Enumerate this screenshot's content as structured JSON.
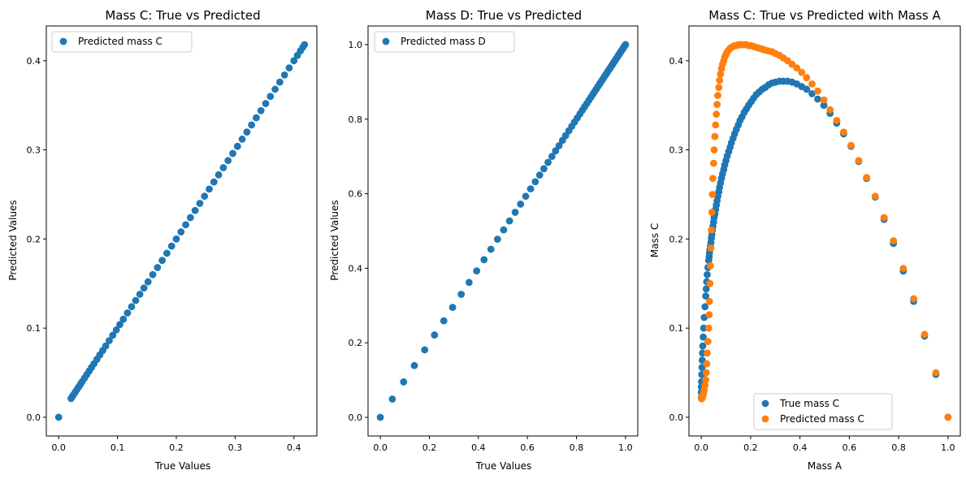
{
  "colors": {
    "blue": "#1f77b4",
    "orange": "#ff7f0e"
  },
  "chart_data": [
    {
      "type": "scatter",
      "title": "Mass C: True vs Predicted",
      "xlabel": "True Values",
      "ylabel": "Predicted Values",
      "xlim": [
        -0.021,
        0.439
      ],
      "ylim": [
        -0.021,
        0.439
      ],
      "xticks": [
        0.0,
        0.1,
        0.2,
        0.3,
        0.4
      ],
      "xtick_labels": [
        "0.0",
        "0.1",
        "0.2",
        "0.3",
        "0.4"
      ],
      "yticks": [
        0.0,
        0.1,
        0.2,
        0.3,
        0.4
      ],
      "yticks_labels": [
        "0.0",
        "0.1",
        "0.2",
        "0.3",
        "0.4"
      ],
      "legend": {
        "placement": "upper-left",
        "entries": [
          "Predicted mass C"
        ]
      },
      "grid": false,
      "series": [
        {
          "name": "Predicted mass C",
          "color": "#1f77b4",
          "x": [
            0.0,
            0.021,
            0.023,
            0.025,
            0.028,
            0.031,
            0.034,
            0.037,
            0.04,
            0.044,
            0.048,
            0.052,
            0.056,
            0.06,
            0.065,
            0.07,
            0.075,
            0.08,
            0.086,
            0.092,
            0.098,
            0.104,
            0.11,
            0.117,
            0.124,
            0.131,
            0.138,
            0.145,
            0.152,
            0.16,
            0.168,
            0.176,
            0.184,
            0.192,
            0.2,
            0.208,
            0.216,
            0.224,
            0.232,
            0.24,
            0.248,
            0.256,
            0.264,
            0.272,
            0.28,
            0.288,
            0.296,
            0.304,
            0.312,
            0.32,
            0.328,
            0.336,
            0.344,
            0.352,
            0.36,
            0.368,
            0.376,
            0.384,
            0.392,
            0.4,
            0.406,
            0.411,
            0.415,
            0.418
          ],
          "y": [
            0.0,
            0.021,
            0.023,
            0.025,
            0.028,
            0.031,
            0.034,
            0.037,
            0.04,
            0.044,
            0.048,
            0.052,
            0.056,
            0.06,
            0.065,
            0.07,
            0.075,
            0.08,
            0.086,
            0.092,
            0.098,
            0.104,
            0.11,
            0.117,
            0.124,
            0.131,
            0.138,
            0.145,
            0.152,
            0.16,
            0.168,
            0.176,
            0.184,
            0.192,
            0.2,
            0.208,
            0.216,
            0.224,
            0.232,
            0.24,
            0.248,
            0.256,
            0.264,
            0.272,
            0.28,
            0.288,
            0.296,
            0.304,
            0.312,
            0.32,
            0.328,
            0.336,
            0.344,
            0.352,
            0.36,
            0.368,
            0.376,
            0.384,
            0.392,
            0.4,
            0.406,
            0.411,
            0.415,
            0.418
          ]
        }
      ]
    },
    {
      "type": "scatter",
      "title": "Mass D: True vs Predicted",
      "xlabel": "True Values",
      "ylabel": "Predicted Values",
      "xlim": [
        -0.05,
        1.05
      ],
      "ylim": [
        -0.05,
        1.05
      ],
      "xticks": [
        0.0,
        0.2,
        0.4,
        0.6,
        0.8,
        1.0
      ],
      "xtick_labels": [
        "0.0",
        "0.2",
        "0.4",
        "0.6",
        "0.8",
        "1.0"
      ],
      "yticks": [
        0.0,
        0.2,
        0.4,
        0.6,
        0.8,
        1.0
      ],
      "yticks_labels": [
        "0.0",
        "0.2",
        "0.4",
        "0.6",
        "0.8",
        "1.0"
      ],
      "legend": {
        "placement": "upper-left",
        "entries": [
          "Predicted mass D"
        ]
      },
      "grid": false,
      "series": [
        {
          "name": "Predicted mass D",
          "color": "#1f77b4",
          "x": [
            0.0,
            0.049,
            0.095,
            0.139,
            0.181,
            0.221,
            0.259,
            0.295,
            0.33,
            0.362,
            0.393,
            0.423,
            0.451,
            0.478,
            0.503,
            0.527,
            0.55,
            0.572,
            0.593,
            0.613,
            0.632,
            0.65,
            0.667,
            0.684,
            0.7,
            0.715,
            0.729,
            0.743,
            0.756,
            0.769,
            0.781,
            0.792,
            0.803,
            0.814,
            0.824,
            0.833,
            0.842,
            0.851,
            0.859,
            0.867,
            0.874,
            0.881,
            0.888,
            0.895,
            0.901,
            0.907,
            0.913,
            0.918,
            0.923,
            0.928,
            0.933,
            0.938,
            0.942,
            0.946,
            0.95,
            0.954,
            0.958,
            0.961,
            0.965,
            0.968,
            0.971,
            0.974,
            0.977,
            0.98,
            0.983,
            0.986,
            0.989,
            0.992,
            0.995,
            0.998,
            1.0
          ],
          "y": [
            0.0,
            0.049,
            0.095,
            0.139,
            0.181,
            0.221,
            0.259,
            0.295,
            0.33,
            0.362,
            0.393,
            0.423,
            0.451,
            0.478,
            0.503,
            0.527,
            0.55,
            0.572,
            0.593,
            0.613,
            0.632,
            0.65,
            0.667,
            0.684,
            0.7,
            0.715,
            0.729,
            0.743,
            0.756,
            0.769,
            0.781,
            0.792,
            0.803,
            0.814,
            0.824,
            0.833,
            0.842,
            0.851,
            0.859,
            0.867,
            0.874,
            0.881,
            0.888,
            0.895,
            0.901,
            0.907,
            0.913,
            0.918,
            0.923,
            0.928,
            0.933,
            0.938,
            0.942,
            0.946,
            0.95,
            0.954,
            0.958,
            0.961,
            0.965,
            0.968,
            0.971,
            0.974,
            0.977,
            0.98,
            0.983,
            0.986,
            0.989,
            0.992,
            0.995,
            0.998,
            1.0
          ]
        }
      ]
    },
    {
      "type": "scatter",
      "title": "Mass C: True vs Predicted with Mass A",
      "xlabel": "Mass A",
      "ylabel": "Mass C",
      "xlim": [
        -0.05,
        1.05
      ],
      "ylim": [
        -0.021,
        0.439
      ],
      "xticks": [
        0.0,
        0.2,
        0.4,
        0.6,
        0.8,
        1.0
      ],
      "xtick_labels": [
        "0.0",
        "0.2",
        "0.4",
        "0.6",
        "0.8",
        "1.0"
      ],
      "yticks": [
        0.0,
        0.1,
        0.2,
        0.3,
        0.4
      ],
      "yticks_labels": [
        "0.0",
        "0.1",
        "0.2",
        "0.3",
        "0.4"
      ],
      "legend": {
        "placement": "lower-center",
        "entries": [
          "True mass C",
          "Predicted mass C"
        ]
      },
      "grid": false,
      "series": [
        {
          "name": "True mass C",
          "color": "#1f77b4",
          "x": [
            1.0,
            0.951,
            0.905,
            0.861,
            0.819,
            0.779,
            0.741,
            0.705,
            0.67,
            0.638,
            0.607,
            0.577,
            0.549,
            0.522,
            0.497,
            0.472,
            0.449,
            0.427,
            0.407,
            0.387,
            0.368,
            0.35,
            0.333,
            0.317,
            0.301,
            0.287,
            0.273,
            0.259,
            0.247,
            0.235,
            0.223,
            0.212,
            0.202,
            0.192,
            0.183,
            0.174,
            0.165,
            0.157,
            0.15,
            0.142,
            0.135,
            0.129,
            0.122,
            0.117,
            0.111,
            0.105,
            0.1,
            0.095,
            0.091,
            0.086,
            0.082,
            0.078,
            0.074,
            0.071,
            0.067,
            0.064,
            0.061,
            0.058,
            0.055,
            0.052,
            0.05,
            0.047,
            0.045,
            0.043,
            0.041,
            0.039,
            0.037,
            0.035,
            0.033,
            0.032,
            0.03,
            0.027,
            0.024,
            0.022,
            0.02,
            0.018,
            0.015,
            0.012,
            0.01,
            0.008,
            0.006,
            0.005,
            0.004,
            0.003,
            0.002,
            0.001,
            0.0005,
            0.0002,
            0.0001
          ],
          "y": [
            0.0,
            0.048,
            0.091,
            0.13,
            0.164,
            0.195,
            0.222,
            0.247,
            0.268,
            0.287,
            0.304,
            0.318,
            0.33,
            0.341,
            0.35,
            0.357,
            0.363,
            0.368,
            0.371,
            0.374,
            0.376,
            0.377,
            0.377,
            0.377,
            0.376,
            0.375,
            0.373,
            0.37,
            0.368,
            0.365,
            0.362,
            0.358,
            0.354,
            0.35,
            0.346,
            0.342,
            0.337,
            0.333,
            0.328,
            0.323,
            0.318,
            0.313,
            0.308,
            0.303,
            0.298,
            0.293,
            0.288,
            0.283,
            0.278,
            0.273,
            0.268,
            0.263,
            0.258,
            0.253,
            0.248,
            0.243,
            0.238,
            0.233,
            0.228,
            0.224,
            0.219,
            0.214,
            0.21,
            0.205,
            0.201,
            0.196,
            0.192,
            0.188,
            0.184,
            0.18,
            0.176,
            0.168,
            0.16,
            0.152,
            0.144,
            0.136,
            0.124,
            0.112,
            0.1,
            0.09,
            0.08,
            0.072,
            0.064,
            0.056,
            0.048,
            0.04,
            0.034,
            0.028,
            0.022
          ]
        },
        {
          "name": "Predicted mass C",
          "color": "#ff7f0e",
          "x": [
            1.0,
            0.951,
            0.905,
            0.861,
            0.819,
            0.779,
            0.741,
            0.705,
            0.67,
            0.638,
            0.607,
            0.577,
            0.549,
            0.522,
            0.497,
            0.472,
            0.449,
            0.427,
            0.407,
            0.387,
            0.368,
            0.35,
            0.333,
            0.317,
            0.301,
            0.287,
            0.273,
            0.259,
            0.247,
            0.235,
            0.223,
            0.212,
            0.202,
            0.192,
            0.183,
            0.174,
            0.165,
            0.157,
            0.15,
            0.142,
            0.135,
            0.129,
            0.122,
            0.117,
            0.111,
            0.105,
            0.1,
            0.095,
            0.091,
            0.086,
            0.082,
            0.078,
            0.074,
            0.071,
            0.067,
            0.064,
            0.061,
            0.058,
            0.055,
            0.052,
            0.05,
            0.047,
            0.045,
            0.043,
            0.041,
            0.039,
            0.037,
            0.035,
            0.033,
            0.032,
            0.03,
            0.027,
            0.024,
            0.022,
            0.02,
            0.018,
            0.015,
            0.012,
            0.01,
            0.008,
            0.006,
            0.005,
            0.004,
            0.003,
            0.002,
            0.001,
            0.0005,
            0.0002,
            0.0001
          ],
          "y": [
            0.0,
            0.05,
            0.093,
            0.133,
            0.167,
            0.198,
            0.224,
            0.248,
            0.269,
            0.288,
            0.305,
            0.32,
            0.333,
            0.345,
            0.356,
            0.366,
            0.374,
            0.381,
            0.387,
            0.392,
            0.396,
            0.4,
            0.403,
            0.406,
            0.408,
            0.41,
            0.411,
            0.412,
            0.413,
            0.414,
            0.415,
            0.416,
            0.417,
            0.417,
            0.418,
            0.418,
            0.418,
            0.418,
            0.418,
            0.417,
            0.417,
            0.416,
            0.415,
            0.414,
            0.412,
            0.41,
            0.407,
            0.404,
            0.4,
            0.396,
            0.391,
            0.385,
            0.378,
            0.37,
            0.361,
            0.351,
            0.34,
            0.328,
            0.315,
            0.3,
            0.285,
            0.268,
            0.25,
            0.23,
            0.21,
            0.19,
            0.17,
            0.15,
            0.13,
            0.115,
            0.1,
            0.085,
            0.072,
            0.06,
            0.05,
            0.042,
            0.036,
            0.031,
            0.028,
            0.026,
            0.024,
            0.023,
            0.022,
            0.021,
            0.021,
            0.021,
            0.021,
            0.021,
            0.021
          ]
        }
      ]
    }
  ]
}
